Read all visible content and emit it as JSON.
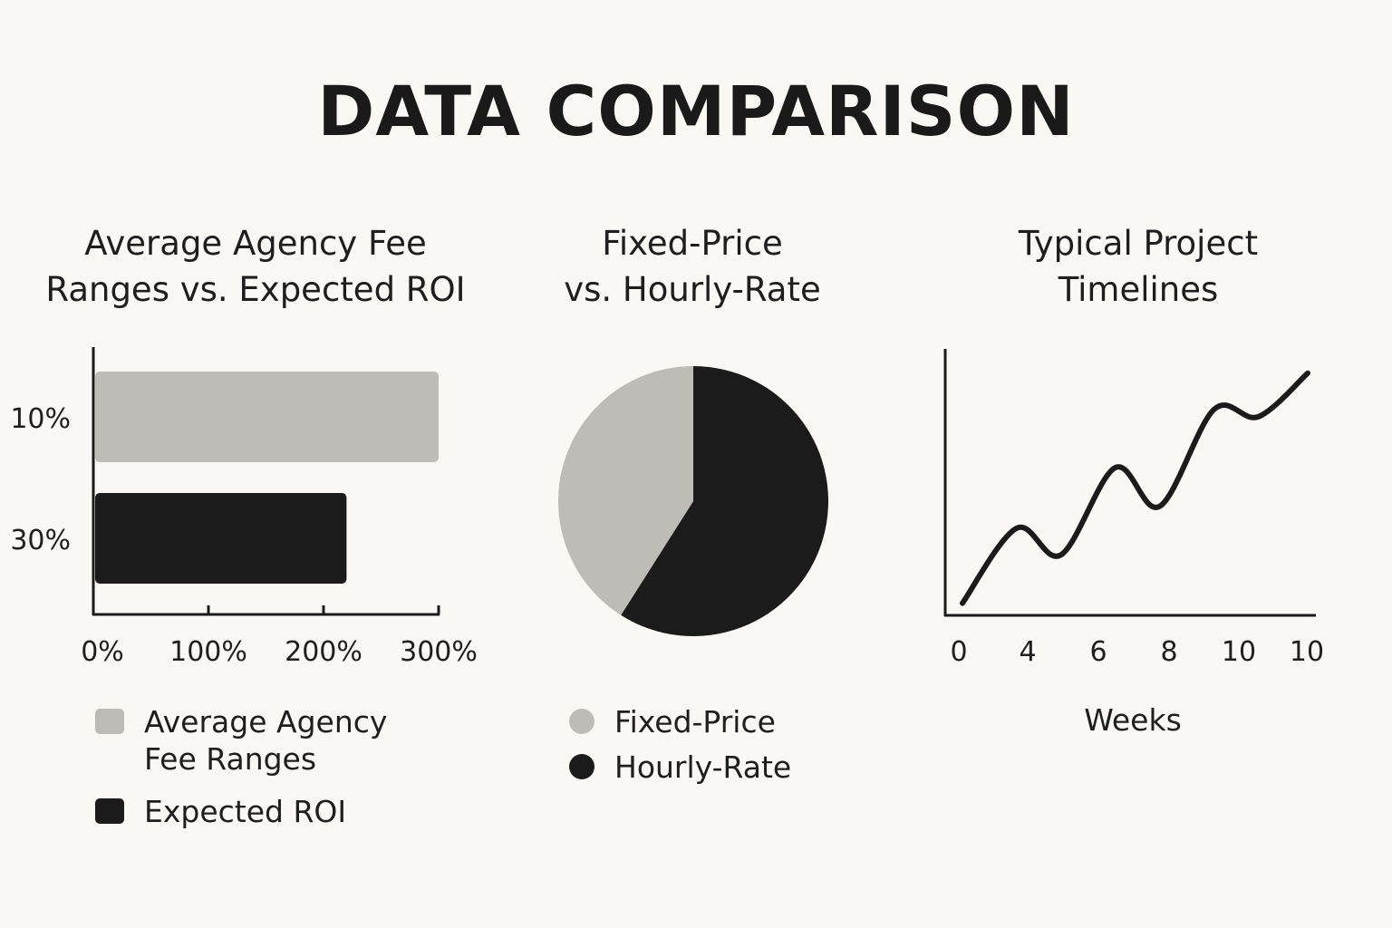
{
  "title": "DATA COMPARISON",
  "colors": {
    "light": "#bdbcb7",
    "dark": "#1b1b1b",
    "background": "#f9f8f4"
  },
  "chart_data": [
    {
      "type": "bar",
      "orientation": "horizontal",
      "title_lines": [
        "Average Agency Fee",
        "Ranges vs. Expected ROI"
      ],
      "categories": [
        "10%",
        "30%"
      ],
      "series": [
        {
          "name": "Average Agency Fee Ranges",
          "color": "#bdbcb7",
          "values": [
            300,
            null
          ]
        },
        {
          "name": "Expected ROI",
          "color": "#1b1b1b",
          "values": [
            null,
            220
          ]
        }
      ],
      "xticks": [
        "0%",
        "100%",
        "200%",
        "300%"
      ],
      "xlim": [
        0,
        300
      ],
      "legend": [
        {
          "label": "Average Agency\nFee Ranges",
          "color": "#bdbcb7"
        },
        {
          "label": "Expected ROI",
          "color": "#1b1b1b"
        }
      ],
      "legend_position": "bottom"
    },
    {
      "type": "pie",
      "title_lines": [
        "Fixed-Price",
        "vs. Hourly-Rate"
      ],
      "slices": [
        {
          "label": "Fixed-Price",
          "value": 41,
          "color": "#bdbcb7"
        },
        {
          "label": "Hourly-Rate",
          "value": 59,
          "color": "#1b1b1b"
        }
      ],
      "legend_position": "bottom"
    },
    {
      "type": "line",
      "title_lines": [
        "Typical Project",
        "Timelines"
      ],
      "xlabel": "Weeks",
      "xticks": [
        "0",
        "4",
        "6",
        "8",
        "10",
        "10"
      ],
      "points": [
        [
          0,
          0.05
        ],
        [
          1.1,
          0.36
        ],
        [
          2.0,
          0.25
        ],
        [
          3.1,
          0.61
        ],
        [
          4.0,
          0.45
        ],
        [
          5.1,
          0.85
        ],
        [
          6.0,
          0.82
        ],
        [
          7.0,
          1.0
        ]
      ],
      "ylim": [
        0,
        1.1
      ]
    }
  ]
}
